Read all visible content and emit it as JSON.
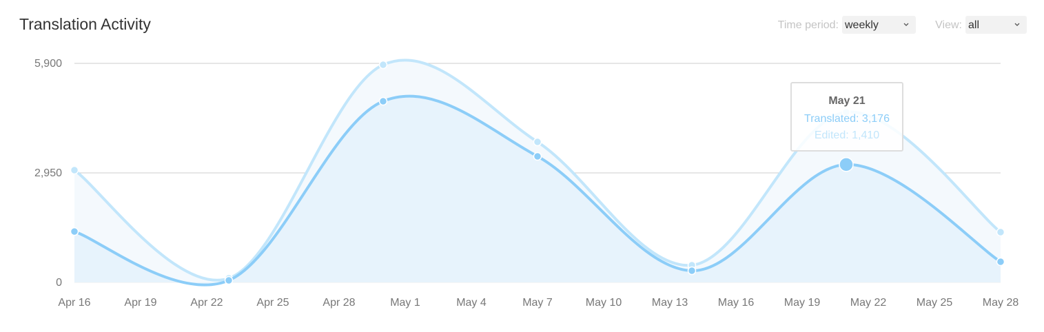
{
  "title": "Translation Activity",
  "controls": {
    "period_label": "Time period:",
    "period_value": "weekly",
    "view_label": "View:",
    "view_value": "all"
  },
  "chart_data": {
    "type": "stacked-area",
    "x": [
      "Apr 16",
      "Apr 23",
      "Apr 30",
      "May 7",
      "May 14",
      "May 21",
      "May 28"
    ],
    "series": [
      {
        "name": "Translated",
        "color": "#8ccdf8",
        "fill": "#e7f3fc",
        "values": [
          1370,
          55,
          4880,
          3395,
          315,
          3176,
          557
        ]
      },
      {
        "name": "Edited",
        "color": "#c2e6fb",
        "fill": "#f4f9fd",
        "values": [
          1654,
          56,
          982,
          389,
          149,
          1410,
          797
        ]
      }
    ],
    "xlim": [
      "Apr 16",
      "May 28"
    ],
    "xticks": [
      "Apr 16",
      "Apr 19",
      "Apr 22",
      "Apr 25",
      "Apr 28",
      "May 1",
      "May 4",
      "May 7",
      "May 10",
      "May 13",
      "May 16",
      "May 19",
      "May 22",
      "May 25",
      "May 28"
    ],
    "ylim": [
      0,
      5900
    ],
    "yticks": [
      0,
      {
        "value": 2950,
        "label": "2,950"
      },
      {
        "value": 5900,
        "label": "5,900"
      }
    ],
    "grid": true,
    "tooltip": {
      "title": "May 21",
      "lines": [
        "Translated: 3,176",
        "Edited: 1,410"
      ],
      "index": 5
    }
  }
}
